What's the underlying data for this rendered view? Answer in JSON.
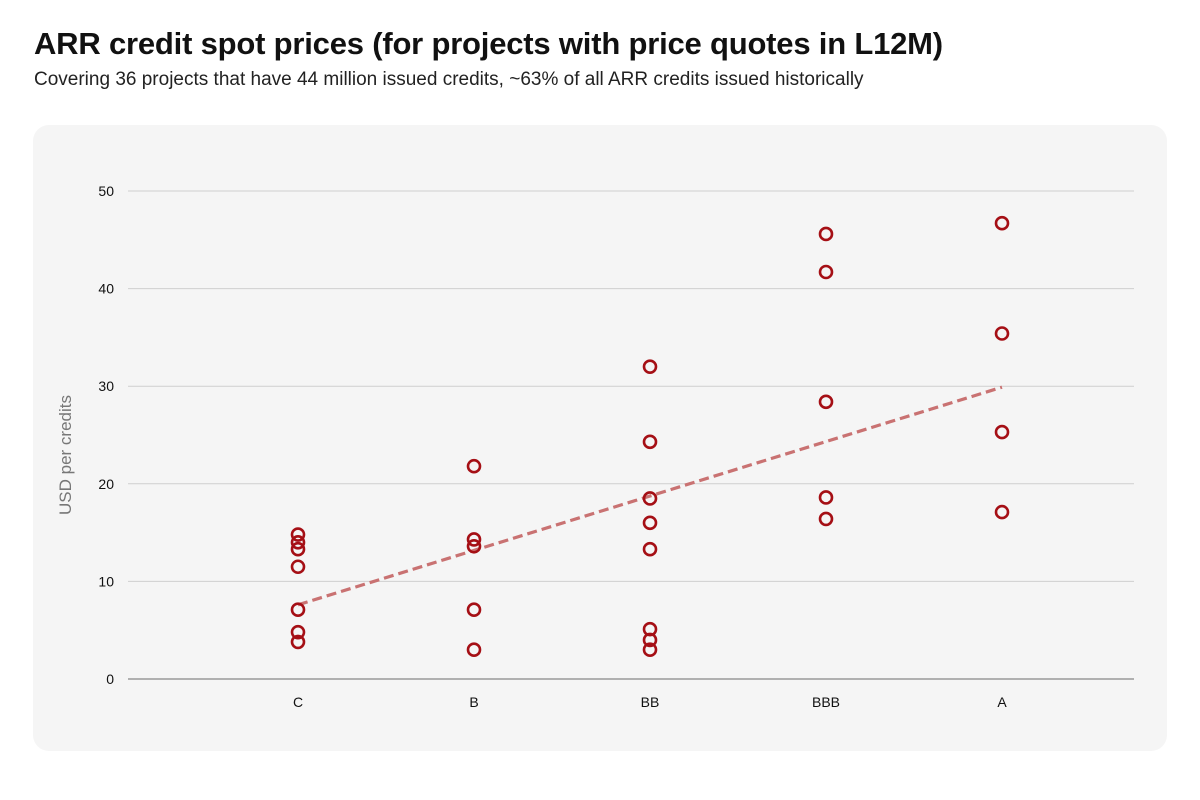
{
  "header": {
    "title": "ARR credit spot prices (for projects with price quotes in L12M)",
    "subtitle": "Covering 36 projects that have 44 million issued credits, ~63% of all ARR credits issued historically"
  },
  "chart_data": {
    "type": "scatter",
    "title": "ARR credit spot prices (for projects with price quotes in L12M)",
    "subtitle": "Covering 36 projects that have 44 million issued credits, ~63% of all ARR credits issued historically",
    "xlabel": "",
    "ylabel": "USD per credits",
    "categories": [
      "C",
      "B",
      "BB",
      "BBB",
      "A"
    ],
    "ylim": [
      0,
      50
    ],
    "yticks": [
      0,
      10,
      20,
      30,
      40,
      50
    ],
    "grid": true,
    "marker_color": "#a50f15",
    "trend_color": "#c97272",
    "series": [
      {
        "values": [
          {
            "x": "C",
            "y": 14.8
          },
          {
            "x": "C",
            "y": 14.0
          },
          {
            "x": "C",
            "y": 13.3
          },
          {
            "x": "C",
            "y": 11.5
          },
          {
            "x": "C",
            "y": 7.1
          },
          {
            "x": "C",
            "y": 4.8
          },
          {
            "x": "C",
            "y": 3.8
          },
          {
            "x": "B",
            "y": 21.8
          },
          {
            "x": "B",
            "y": 14.3
          },
          {
            "x": "B",
            "y": 13.6
          },
          {
            "x": "B",
            "y": 7.1
          },
          {
            "x": "B",
            "y": 3.0
          },
          {
            "x": "BB",
            "y": 32.0
          },
          {
            "x": "BB",
            "y": 24.3
          },
          {
            "x": "BB",
            "y": 18.5
          },
          {
            "x": "BB",
            "y": 16.0
          },
          {
            "x": "BB",
            "y": 13.3
          },
          {
            "x": "BB",
            "y": 5.1
          },
          {
            "x": "BB",
            "y": 4.0
          },
          {
            "x": "BB",
            "y": 3.0
          },
          {
            "x": "BBB",
            "y": 45.6
          },
          {
            "x": "BBB",
            "y": 41.7
          },
          {
            "x": "BBB",
            "y": 28.4
          },
          {
            "x": "BBB",
            "y": 18.6
          },
          {
            "x": "BBB",
            "y": 16.4
          },
          {
            "x": "A",
            "y": 46.7
          },
          {
            "x": "A",
            "y": 35.4
          },
          {
            "x": "A",
            "y": 25.3
          },
          {
            "x": "A",
            "y": 17.1
          }
        ]
      }
    ],
    "trendline": {
      "style": "dashed",
      "start": {
        "x": "C",
        "y": 7.6
      },
      "end": {
        "x": "A",
        "y": 29.9
      }
    }
  }
}
